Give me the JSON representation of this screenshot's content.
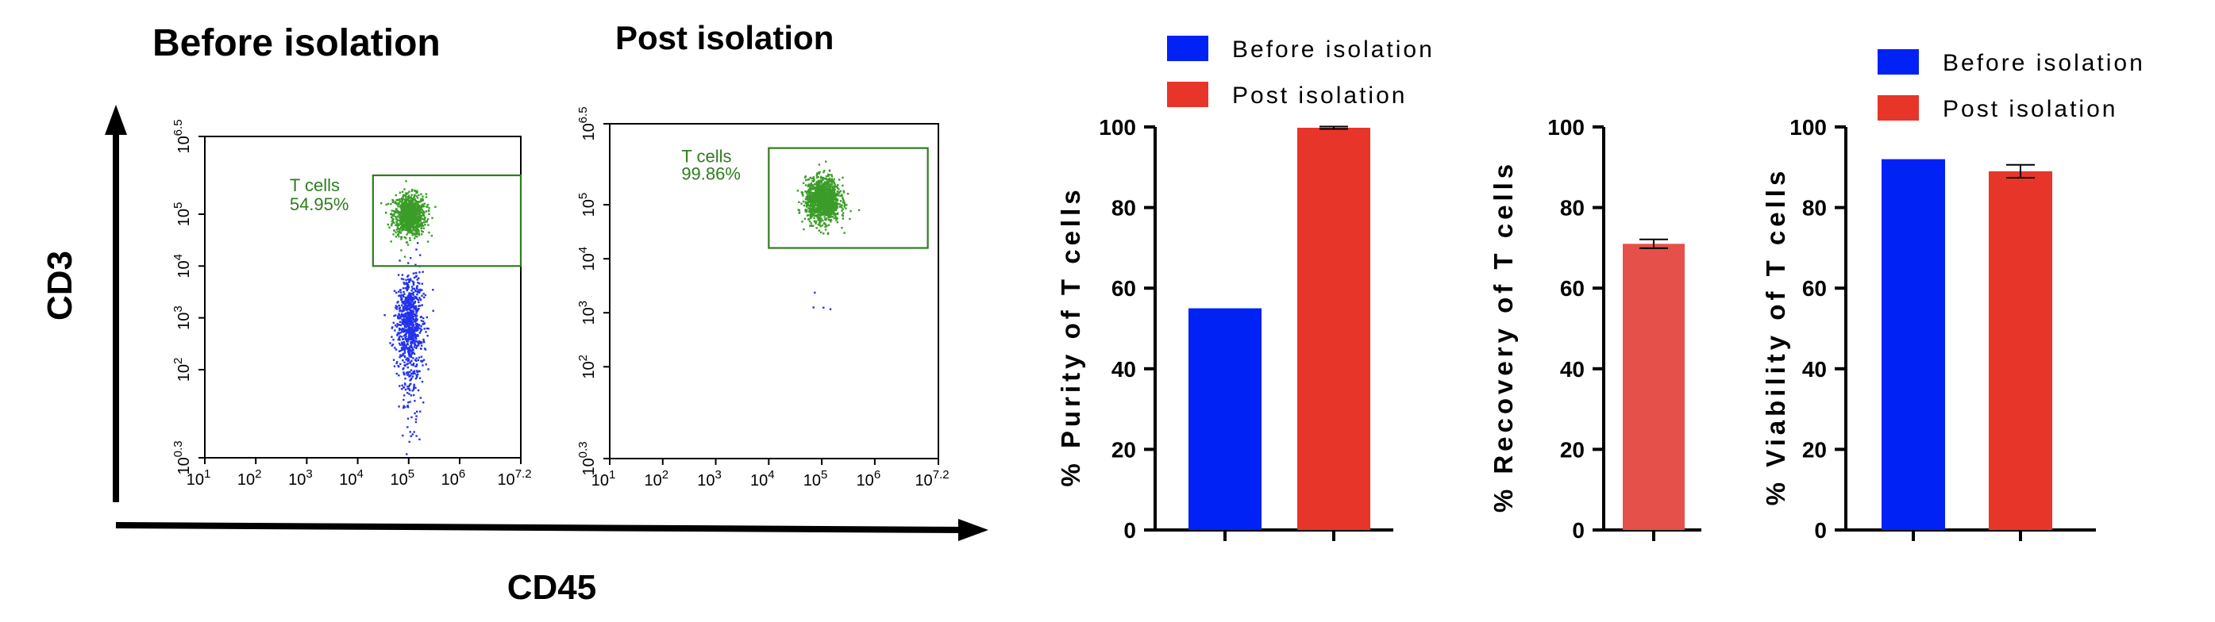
{
  "figure_labels": {
    "y_axis": "CD3",
    "x_axis": "CD45"
  },
  "colors": {
    "before": "#0022f5",
    "post": "#e8352a",
    "recovery": "#e5504b",
    "gate": "#2e7d1e",
    "tcell_dots": "#3b9d28",
    "other_dots": "#2233ee"
  },
  "chart_data": [
    {
      "type": "scatter",
      "title": "Before isolation",
      "x_scale": "log",
      "y_scale": "log",
      "xlim": [
        1,
        7.2
      ],
      "ylim": [
        0.3,
        6.5
      ],
      "x_ticks": [
        {
          "base": "10",
          "exp": "1"
        },
        {
          "base": "10",
          "exp": "2"
        },
        {
          "base": "10",
          "exp": "3"
        },
        {
          "base": "10",
          "exp": "4"
        },
        {
          "base": "10",
          "exp": "5"
        },
        {
          "base": "10",
          "exp": "6"
        },
        {
          "base": "10",
          "exp": "7.2"
        }
      ],
      "y_ticks": [
        {
          "base": "10",
          "exp": "0.3"
        },
        {
          "base": "10",
          "exp": "2"
        },
        {
          "base": "10",
          "exp": "3"
        },
        {
          "base": "10",
          "exp": "4"
        },
        {
          "base": "10",
          "exp": "5"
        },
        {
          "base": "10",
          "exp": "6.5"
        }
      ],
      "gate": {
        "label": "T cells",
        "percent": "54.95%",
        "x_range": [
          4.3,
          7.2
        ],
        "y_range": [
          4.0,
          5.75
        ]
      },
      "populations": [
        {
          "name": "T cells",
          "x_center": 5.0,
          "y_center": 5.0,
          "count": 900
        },
        {
          "name": "non-T cells",
          "x_center": 5.0,
          "y_center": 3.0,
          "count": 900
        }
      ]
    },
    {
      "type": "scatter",
      "title": "Post isolation",
      "x_scale": "log",
      "y_scale": "log",
      "xlim": [
        1,
        7.2
      ],
      "ylim": [
        0.3,
        6.5
      ],
      "x_ticks": [
        {
          "base": "10",
          "exp": "1"
        },
        {
          "base": "10",
          "exp": "2"
        },
        {
          "base": "10",
          "exp": "3"
        },
        {
          "base": "10",
          "exp": "4"
        },
        {
          "base": "10",
          "exp": "5"
        },
        {
          "base": "10",
          "exp": "6"
        },
        {
          "base": "10",
          "exp": "7.2"
        }
      ],
      "y_ticks": [
        {
          "base": "10",
          "exp": "0.3"
        },
        {
          "base": "10",
          "exp": "2"
        },
        {
          "base": "10",
          "exp": "3"
        },
        {
          "base": "10",
          "exp": "4"
        },
        {
          "base": "10",
          "exp": "5"
        },
        {
          "base": "10",
          "exp": "6.5"
        }
      ],
      "gate": {
        "label": "T cells",
        "percent": "99.86%",
        "x_range": [
          4.0,
          7.0
        ],
        "y_range": [
          4.2,
          6.05
        ]
      },
      "populations": [
        {
          "name": "T cells",
          "x_center": 5.0,
          "y_center": 5.1,
          "count": 1300
        },
        {
          "name": "non-T cells",
          "x_center": 5.0,
          "y_center": 3.3,
          "count": 4
        }
      ]
    },
    {
      "type": "bar",
      "categories": [
        "Before isolation",
        "Post isolation"
      ],
      "values": [
        55,
        99.8
      ],
      "errors": [
        0,
        0.3
      ],
      "ylabel": "% Purity of T cells",
      "ylim": [
        0,
        100
      ],
      "y_ticks": [
        "0",
        "20",
        "40",
        "60",
        "80",
        "100"
      ],
      "legend": [
        "Before isolation",
        "Post isolation"
      ],
      "legend_position": "top"
    },
    {
      "type": "bar",
      "categories": [
        ""
      ],
      "values": [
        71
      ],
      "errors": [
        1.1
      ],
      "ylabel": "% Recovery of T cells",
      "ylim": [
        0,
        100
      ],
      "y_ticks": [
        "0",
        "20",
        "40",
        "60",
        "80",
        "100"
      ]
    },
    {
      "type": "bar",
      "categories": [
        "Before isolation",
        "Post isolation"
      ],
      "values": [
        92,
        89
      ],
      "errors": [
        0,
        1.6
      ],
      "ylabel": "% Viability of T cells",
      "ylim": [
        0,
        100
      ],
      "y_ticks": [
        "0",
        "20",
        "40",
        "60",
        "80",
        "100"
      ],
      "legend": [
        "Before isolation",
        "Post isolation"
      ],
      "legend_position": "top"
    }
  ]
}
